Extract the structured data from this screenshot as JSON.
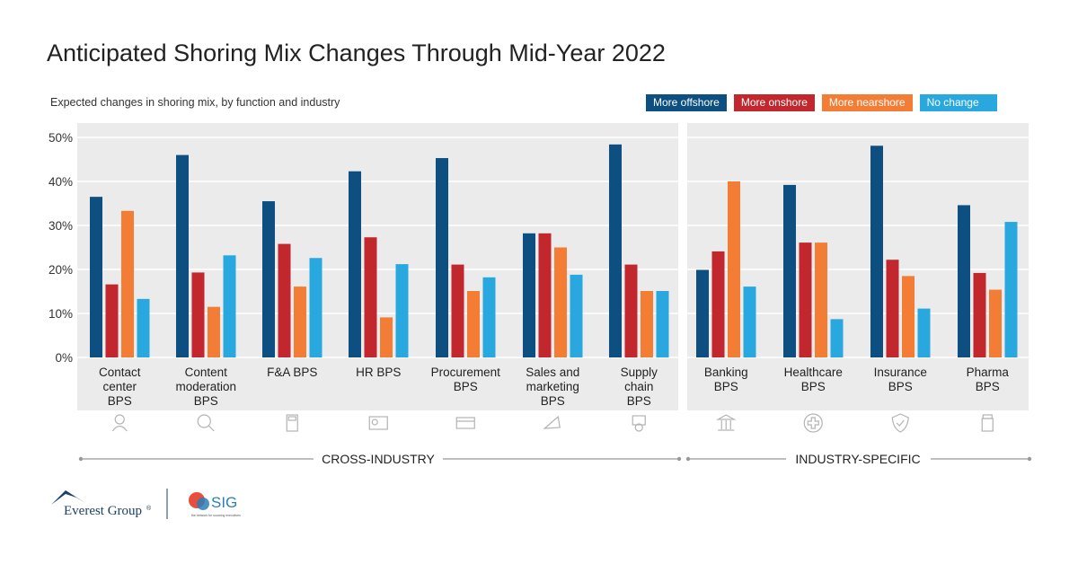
{
  "title": "Anticipated Shoring Mix Changes Through Mid-Year 2022",
  "subtitle": "Expected changes in shoring mix, by function and industry",
  "colors": {
    "offshore": "#0d4f80",
    "onshore": "#c1272d",
    "nearshore": "#f47d35",
    "nochange": "#29a8e0",
    "panel": "#ebebeb",
    "grid": "#ffffff"
  },
  "legend": [
    {
      "label": "More offshore",
      "color": "#0d4f80"
    },
    {
      "label": "More onshore",
      "color": "#c1272d"
    },
    {
      "label": "More nearshore",
      "color": "#f47d35"
    },
    {
      "label": "No change",
      "color": "#29a8e0"
    }
  ],
  "chart_data": {
    "type": "bar",
    "ylim": [
      0,
      50
    ],
    "yticks": [
      "0%",
      "10%",
      "20%",
      "30%",
      "40%",
      "50%"
    ],
    "categories": [
      [
        "Contact",
        "center",
        "BPS"
      ],
      [
        "Content",
        "moderation",
        "BPS"
      ],
      [
        "F&A BPS"
      ],
      [
        "HR BPS"
      ],
      [
        "Procurement",
        "BPS"
      ],
      [
        "Sales and",
        "marketing",
        "BPS"
      ],
      [
        "Supply",
        "chain",
        "BPS"
      ],
      [
        "Banking",
        "BPS"
      ],
      [
        "Healthcare",
        "BPS"
      ],
      [
        "Insurance",
        "BPS"
      ],
      [
        "Pharma",
        "BPS"
      ]
    ],
    "series": [
      {
        "name": "More offshore",
        "values": [
          36.5,
          46,
          35.5,
          42.3,
          45.3,
          28.2,
          48.4,
          19.9,
          39.2,
          48.1,
          34.6
        ]
      },
      {
        "name": "More onshore",
        "values": [
          16.6,
          19.3,
          25.8,
          27.3,
          21.1,
          28.2,
          21.1,
          24.1,
          26.1,
          22.2,
          19.2
        ]
      },
      {
        "name": "More nearshore",
        "values": [
          33.3,
          11.5,
          16.1,
          9.1,
          15.1,
          25.0,
          15.1,
          40.0,
          26.1,
          18.5,
          15.4
        ]
      },
      {
        "name": "No change",
        "values": [
          13.3,
          23.2,
          22.6,
          21.2,
          18.2,
          18.8,
          15.1,
          16.1,
          8.7,
          11.1,
          30.8
        ]
      }
    ],
    "groups": [
      "CROSS-INDUSTRY",
      "INDUSTRY-SPECIFIC"
    ],
    "icons": [
      "person-icon",
      "code-search-icon",
      "calculator-icon",
      "id-card-icon",
      "credit-card-icon",
      "megaphone-icon",
      "package-gear-icon",
      "bank-icon",
      "medical-cross-icon",
      "shield-check-icon",
      "medicine-bottle-icon"
    ]
  },
  "logos": {
    "everest": "Everest Group",
    "sig": "SIG",
    "sig_tagline": "the network for sourcing executives"
  }
}
